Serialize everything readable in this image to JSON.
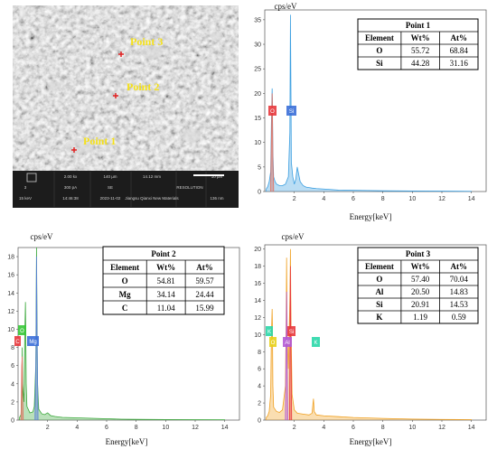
{
  "sem": {
    "points": [
      "Point 3",
      "Point 2",
      "Point 1"
    ],
    "info_bar": {
      "row1": [
        "",
        "2.00 kx",
        "140 µm",
        "14.12 mm",
        "",
        "10 µm"
      ],
      "row2": [
        "3",
        "300 pA",
        "SE",
        "",
        "RESOLUTION",
        ""
      ],
      "row3": [
        "15 keV",
        "14:46:38",
        "2023-11-02",
        "Jiangsu Qianxi New Materials",
        "",
        "136 nm"
      ]
    }
  },
  "charts": [
    {
      "id": "spectrum-1",
      "ylabel": "cps/eV",
      "xlabel": "Energy[keV]",
      "yticks": [
        "0",
        "5",
        "10",
        "15",
        "20",
        "25",
        "30",
        "35"
      ],
      "xticks": [
        "2",
        "4",
        "6",
        "8",
        "10",
        "12",
        "14"
      ],
      "table": {
        "title": "Point 1",
        "headers": [
          "Element",
          "Wt%",
          "At%"
        ],
        "rows": [
          [
            "O",
            "55.72",
            "68.84"
          ],
          [
            "Si",
            "44.28",
            "31.16"
          ]
        ]
      },
      "element_labels": [
        {
          "text": "O",
          "color": "#e8383d"
        },
        {
          "text": "Si",
          "color": "#3b6fd8"
        }
      ]
    },
    {
      "id": "spectrum-2",
      "ylabel": "cps/eV",
      "xlabel": "Energy[keV]",
      "yticks": [
        "0",
        "2",
        "4",
        "6",
        "8",
        "10",
        "12",
        "14",
        "16",
        "18"
      ],
      "xticks": [
        "2",
        "4",
        "6",
        "8",
        "10",
        "12",
        "14"
      ],
      "table": {
        "title": "Point 2",
        "headers": [
          "Element",
          "Wt%",
          "At%"
        ],
        "rows": [
          [
            "O",
            "54.81",
            "59.57"
          ],
          [
            "Mg",
            "34.14",
            "24.44"
          ],
          [
            "C",
            "11.04",
            "15.99"
          ]
        ]
      },
      "element_labels": [
        {
          "text": "C",
          "color": "#e8383d"
        },
        {
          "text": "O",
          "color": "#37c837"
        },
        {
          "text": "Mg",
          "color": "#3b6fd8"
        }
      ]
    },
    {
      "id": "spectrum-3",
      "ylabel": "cps/eV",
      "xlabel": "Energy[keV]",
      "yticks": [
        "0",
        "2",
        "4",
        "6",
        "8",
        "10",
        "12",
        "14",
        "16",
        "18",
        "20"
      ],
      "xticks": [
        "2",
        "4",
        "6",
        "8",
        "10",
        "12",
        "14"
      ],
      "table": {
        "title": "Point 3",
        "headers": [
          "Element",
          "Wt%",
          "At%"
        ],
        "rows": [
          [
            "O",
            "57.40",
            "70.04"
          ],
          [
            "Al",
            "20.50",
            "14.83"
          ],
          [
            "Si",
            "20.91",
            "14.53"
          ],
          [
            "K",
            "1.19",
            "0.59"
          ]
        ]
      },
      "element_labels": [
        {
          "text": "K",
          "color": "#2ad7a8"
        },
        {
          "text": "O",
          "color": "#e8d21c"
        },
        {
          "text": "Al",
          "color": "#b35ad6"
        },
        {
          "text": "Si",
          "color": "#e8383d"
        },
        {
          "text": "K",
          "color": "#2ad7a8"
        }
      ]
    }
  ],
  "chart_data": [
    {
      "type": "area",
      "title": "",
      "xlabel": "Energy[keV]",
      "ylabel": "cps/eV",
      "xlim": [
        0,
        15
      ],
      "ylim": [
        0,
        37
      ],
      "series": [
        {
          "color": "#3a9ee0",
          "x": [
            0.1,
            0.2,
            0.3,
            0.4,
            0.45,
            0.5,
            0.52,
            0.55,
            0.6,
            0.7,
            0.8,
            1.0,
            1.2,
            1.4,
            1.6,
            1.7,
            1.74,
            1.78,
            1.8,
            1.9,
            2.0,
            2.1,
            2.2,
            2.4,
            2.6,
            2.8,
            3.0,
            3.2,
            3.5,
            4,
            5,
            6,
            7,
            8,
            10,
            12,
            14
          ],
          "y": [
            0.5,
            1,
            2,
            4,
            14,
            21,
            18,
            8,
            3,
            2,
            1.5,
            1.2,
            1.2,
            1.5,
            3,
            12,
            36,
            18,
            6,
            3,
            1.5,
            2.5,
            5,
            2,
            1.2,
            0.9,
            0.8,
            0.7,
            0.6,
            0.5,
            0.3,
            0.25,
            0.2,
            0.15,
            0.1,
            0.08,
            0.05
          ]
        },
        {
          "color": "#e07060",
          "x": [
            0.4,
            0.5,
            0.52,
            0.55,
            0.6
          ],
          "y": [
            1,
            20,
            17,
            6,
            1
          ]
        }
      ]
    },
    {
      "type": "area",
      "title": "",
      "xlabel": "Energy[keV]",
      "ylabel": "cps/eV",
      "xlim": [
        0,
        15
      ],
      "ylim": [
        0,
        19
      ],
      "series": [
        {
          "color": "#3aa83a",
          "x": [
            0.1,
            0.2,
            0.25,
            0.28,
            0.3,
            0.4,
            0.45,
            0.5,
            0.52,
            0.55,
            0.6,
            0.8,
            1.0,
            1.1,
            1.2,
            1.25,
            1.28,
            1.32,
            1.4,
            1.6,
            1.8,
            2.0,
            2.2,
            2.5,
            3,
            4,
            5,
            6,
            7,
            8,
            10,
            12,
            14
          ],
          "y": [
            0.3,
            0.6,
            3,
            8,
            4,
            2,
            9,
            13,
            10,
            4,
            1.5,
            0.8,
            0.9,
            1.5,
            6,
            19,
            12,
            4,
            1.2,
            0.7,
            0.6,
            0.8,
            0.5,
            0.4,
            0.3,
            0.25,
            0.2,
            0.15,
            0.1,
            0.08,
            0.06,
            0.05,
            0.04
          ]
        },
        {
          "color": "#e07060",
          "x": [
            0.2,
            0.25,
            0.28,
            0.3,
            0.35
          ],
          "y": [
            0.3,
            6,
            7,
            3,
            0.3
          ]
        },
        {
          "color": "#5a7fd8",
          "x": [
            1.15,
            1.22,
            1.25,
            1.28,
            1.35
          ],
          "y": [
            0.5,
            8,
            18,
            10,
            0.5
          ]
        }
      ]
    },
    {
      "type": "area",
      "title": "",
      "xlabel": "Energy[keV]",
      "ylabel": "cps/eV",
      "xlim": [
        0,
        15
      ],
      "ylim": [
        0,
        20.5
      ],
      "series": [
        {
          "color": "#f0a020",
          "x": [
            0.1,
            0.2,
            0.3,
            0.4,
            0.45,
            0.5,
            0.52,
            0.55,
            0.6,
            0.8,
            1.0,
            1.2,
            1.4,
            1.45,
            1.48,
            1.52,
            1.6,
            1.7,
            1.74,
            1.78,
            1.85,
            2.0,
            2.2,
            2.6,
            3.0,
            3.2,
            3.3,
            3.35,
            3.5,
            4,
            5,
            6,
            7,
            8,
            10,
            12,
            14
          ],
          "y": [
            0.3,
            0.5,
            1,
            3,
            10,
            13,
            11,
            4,
            1.5,
            1,
            0.9,
            1.2,
            4,
            12,
            19,
            10,
            6,
            14,
            20,
            11,
            3,
            1.2,
            0.8,
            0.7,
            0.6,
            0.8,
            2.5,
            1,
            0.6,
            0.5,
            0.4,
            0.3,
            0.25,
            0.2,
            0.12,
            0.08,
            0.05
          ]
        },
        {
          "color": "#b35ad6",
          "x": [
            1.4,
            1.45,
            1.48,
            1.52,
            1.56
          ],
          "y": [
            0.5,
            9,
            15,
            7,
            0.5
          ]
        },
        {
          "color": "#e8383d",
          "x": [
            1.68,
            1.72,
            1.74,
            1.77,
            1.82
          ],
          "y": [
            0.5,
            13,
            18,
            9,
            0.5
          ]
        }
      ]
    }
  ]
}
